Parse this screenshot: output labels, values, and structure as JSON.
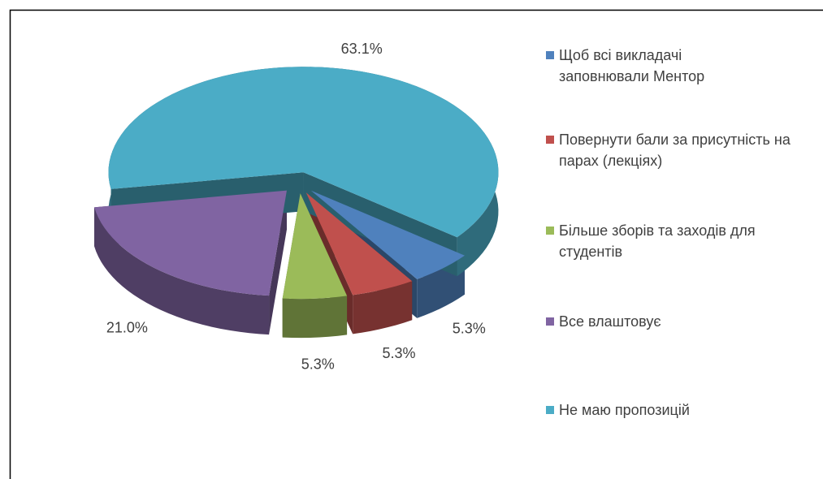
{
  "chart_data": {
    "type": "pie",
    "categories": [
      "Щоб всі викладачі заповнювали Ментор",
      "Повернути бали за присутність на парах (лекціях)",
      "Більше зборів та заходів для студентів",
      "Все влаштовує",
      "Не маю пропозицій"
    ],
    "values": [
      5.3,
      5.3,
      5.3,
      21.0,
      63.1
    ],
    "value_labels": [
      "5.3%",
      "5.3%",
      "5.3%",
      "21.0%",
      "63.1%"
    ],
    "colors": [
      "#4f81bd",
      "#c0504d",
      "#9bbb59",
      "#8064a2",
      "#4bacc6"
    ],
    "legend": "right"
  }
}
